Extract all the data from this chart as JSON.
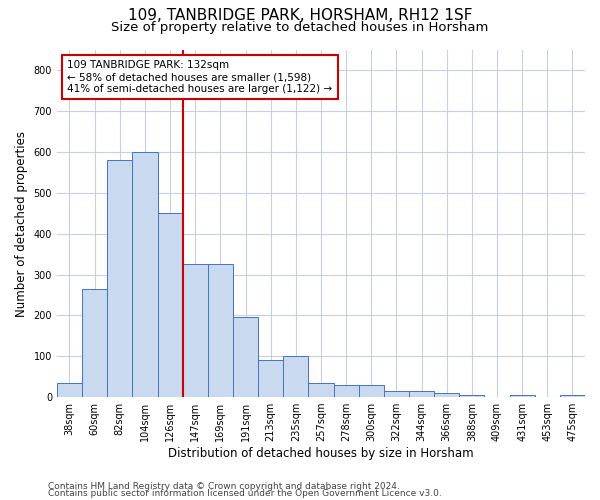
{
  "title": "109, TANBRIDGE PARK, HORSHAM, RH12 1SF",
  "subtitle": "Size of property relative to detached houses in Horsham",
  "xlabel": "Distribution of detached houses by size in Horsham",
  "ylabel": "Number of detached properties",
  "categories": [
    "38sqm",
    "60sqm",
    "82sqm",
    "104sqm",
    "126sqm",
    "147sqm",
    "169sqm",
    "191sqm",
    "213sqm",
    "235sqm",
    "257sqm",
    "278sqm",
    "300sqm",
    "322sqm",
    "344sqm",
    "366sqm",
    "388sqm",
    "409sqm",
    "431sqm",
    "453sqm",
    "475sqm"
  ],
  "values": [
    35,
    265,
    580,
    600,
    450,
    325,
    325,
    195,
    90,
    100,
    35,
    30,
    30,
    15,
    15,
    10,
    5,
    0,
    5,
    0,
    5
  ],
  "bar_color": "#c9d9f0",
  "bar_edge_color": "#4472c4",
  "vline_index": 4,
  "vline_color": "#cc0000",
  "annotation_text": "109 TANBRIDGE PARK: 132sqm\n← 58% of detached houses are smaller (1,598)\n41% of semi-detached houses are larger (1,122) →",
  "annotation_box_color": "#ffffff",
  "annotation_box_edge": "#cc0000",
  "ylim": [
    0,
    850
  ],
  "yticks": [
    0,
    100,
    200,
    300,
    400,
    500,
    600,
    700,
    800
  ],
  "footer1": "Contains HM Land Registry data © Crown copyright and database right 2024.",
  "footer2": "Contains public sector information licensed under the Open Government Licence v3.0.",
  "bg_color": "#ffffff",
  "grid_color": "#c8d0e0",
  "title_fontsize": 11,
  "subtitle_fontsize": 9.5,
  "tick_fontsize": 7,
  "axis_label_fontsize": 8.5,
  "footer_fontsize": 6.5
}
